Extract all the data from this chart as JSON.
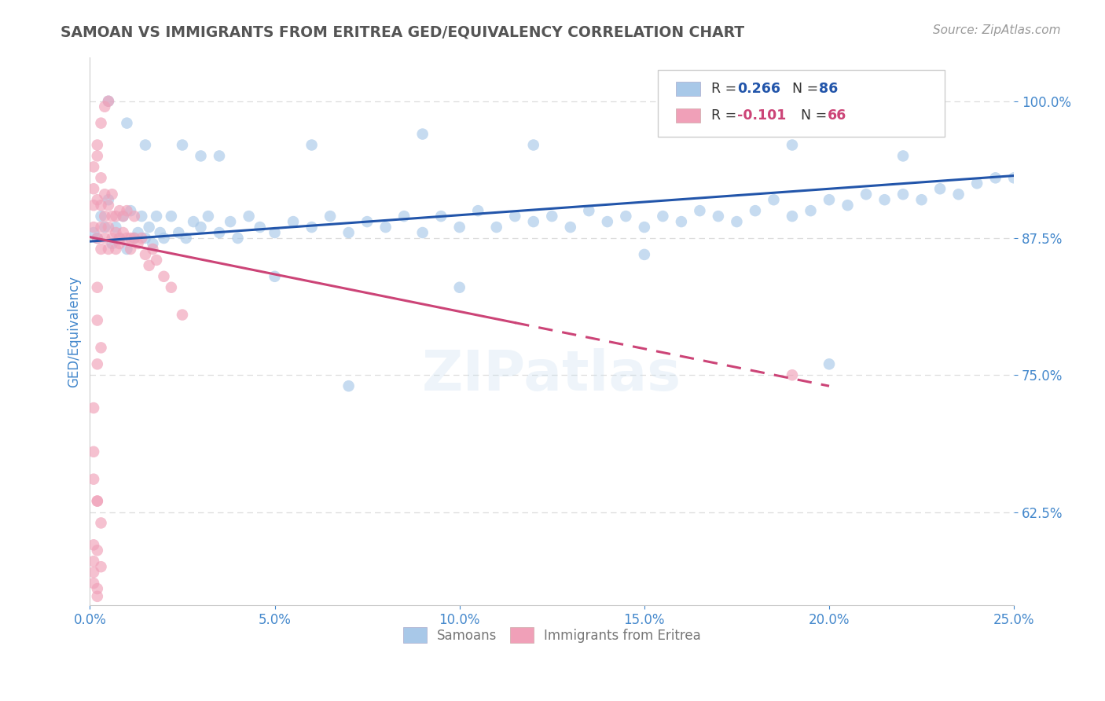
{
  "title": "SAMOAN VS IMMIGRANTS FROM ERITREA GED/EQUIVALENCY CORRELATION CHART",
  "source_text": "Source: ZipAtlas.com",
  "ylabel": "GED/Equivalency",
  "legend_label_1": "Samoans",
  "legend_label_2": "Immigrants from Eritrea",
  "R1": 0.266,
  "N1": 86,
  "R2": -0.101,
  "N2": 66,
  "color_blue": "#a8c8e8",
  "color_pink": "#f0a0b8",
  "color_blue_line": "#2255aa",
  "color_pink_line": "#cc4477",
  "xlim": [
    0.0,
    0.25
  ],
  "ylim": [
    0.54,
    1.04
  ],
  "xticks": [
    0.0,
    0.05,
    0.1,
    0.15,
    0.2,
    0.25
  ],
  "yticks": [
    0.625,
    0.75,
    0.875,
    1.0
  ],
  "xticklabels": [
    "0.0%",
    "5.0%",
    "10.0%",
    "15.0%",
    "20.0%",
    "25.0%"
  ],
  "yticklabels": [
    "62.5%",
    "75.0%",
    "87.5%",
    "100.0%"
  ],
  "blue_x": [
    0.001,
    0.002,
    0.003,
    0.004,
    0.005,
    0.006,
    0.007,
    0.008,
    0.009,
    0.01,
    0.011,
    0.012,
    0.013,
    0.014,
    0.015,
    0.016,
    0.017,
    0.018,
    0.019,
    0.02,
    0.022,
    0.024,
    0.026,
    0.028,
    0.03,
    0.032,
    0.035,
    0.038,
    0.04,
    0.043,
    0.046,
    0.05,
    0.055,
    0.06,
    0.065,
    0.07,
    0.075,
    0.08,
    0.085,
    0.09,
    0.095,
    0.1,
    0.105,
    0.11,
    0.115,
    0.12,
    0.125,
    0.13,
    0.135,
    0.14,
    0.145,
    0.15,
    0.155,
    0.16,
    0.165,
    0.17,
    0.175,
    0.18,
    0.185,
    0.19,
    0.195,
    0.2,
    0.205,
    0.21,
    0.215,
    0.22,
    0.225,
    0.23,
    0.235,
    0.24,
    0.245,
    0.25,
    0.05,
    0.1,
    0.15,
    0.2,
    0.03,
    0.06,
    0.09,
    0.12,
    0.01,
    0.005,
    0.015,
    0.025,
    0.035,
    0.07,
    0.19,
    0.22
  ],
  "blue_y": [
    0.88,
    0.875,
    0.895,
    0.885,
    0.91,
    0.87,
    0.885,
    0.875,
    0.895,
    0.865,
    0.9,
    0.875,
    0.88,
    0.895,
    0.875,
    0.885,
    0.87,
    0.895,
    0.88,
    0.875,
    0.895,
    0.88,
    0.875,
    0.89,
    0.885,
    0.895,
    0.88,
    0.89,
    0.875,
    0.895,
    0.885,
    0.88,
    0.89,
    0.885,
    0.895,
    0.88,
    0.89,
    0.885,
    0.895,
    0.88,
    0.895,
    0.885,
    0.9,
    0.885,
    0.895,
    0.89,
    0.895,
    0.885,
    0.9,
    0.89,
    0.895,
    0.885,
    0.895,
    0.89,
    0.9,
    0.895,
    0.89,
    0.9,
    0.91,
    0.895,
    0.9,
    0.91,
    0.905,
    0.915,
    0.91,
    0.915,
    0.91,
    0.92,
    0.915,
    0.925,
    0.93,
    0.93,
    0.84,
    0.83,
    0.86,
    0.76,
    0.95,
    0.96,
    0.97,
    0.96,
    0.98,
    1.0,
    0.96,
    0.96,
    0.95,
    0.74,
    0.96,
    0.95
  ],
  "pink_x": [
    0.001,
    0.001,
    0.002,
    0.002,
    0.003,
    0.003,
    0.003,
    0.004,
    0.004,
    0.004,
    0.005,
    0.005,
    0.005,
    0.006,
    0.006,
    0.006,
    0.007,
    0.007,
    0.007,
    0.008,
    0.008,
    0.008,
    0.009,
    0.009,
    0.01,
    0.01,
    0.011,
    0.011,
    0.012,
    0.012,
    0.013,
    0.014,
    0.015,
    0.016,
    0.017,
    0.018,
    0.02,
    0.022,
    0.025,
    0.002,
    0.003,
    0.004,
    0.005,
    0.003,
    0.002,
    0.001,
    0.001,
    0.002,
    0.001,
    0.002,
    0.002,
    0.003,
    0.003,
    0.001,
    0.002,
    0.001,
    0.001,
    0.002,
    0.001,
    0.002,
    0.001,
    0.19,
    0.002,
    0.003,
    0.002,
    0.001
  ],
  "pink_y": [
    0.885,
    0.905,
    0.875,
    0.91,
    0.885,
    0.865,
    0.905,
    0.875,
    0.895,
    0.915,
    0.885,
    0.865,
    0.905,
    0.875,
    0.895,
    0.915,
    0.88,
    0.865,
    0.895,
    0.875,
    0.9,
    0.87,
    0.88,
    0.895,
    0.875,
    0.9,
    0.875,
    0.865,
    0.875,
    0.895,
    0.87,
    0.875,
    0.86,
    0.85,
    0.865,
    0.855,
    0.84,
    0.83,
    0.805,
    0.83,
    0.98,
    0.995,
    1.0,
    0.775,
    0.8,
    0.68,
    0.655,
    0.635,
    0.72,
    0.76,
    0.59,
    0.615,
    0.575,
    0.94,
    0.635,
    0.58,
    0.56,
    0.548,
    0.57,
    0.555,
    0.595,
    0.75,
    0.96,
    0.93,
    0.95,
    0.92
  ],
  "trend_blue_x0": 0.0,
  "trend_blue_x1": 0.25,
  "trend_blue_y0": 0.872,
  "trend_blue_y1": 0.932,
  "trend_pink_x0": 0.0,
  "trend_pink_x1": 0.2,
  "trend_pink_y0": 0.876,
  "trend_pink_y1": 0.74,
  "trend_pink_solid_end": 0.115,
  "background_color": "#ffffff",
  "grid_color": "#dddddd",
  "title_color": "#555555",
  "tick_color": "#4488cc",
  "source_color": "#999999",
  "watermark": "ZIPatlas"
}
